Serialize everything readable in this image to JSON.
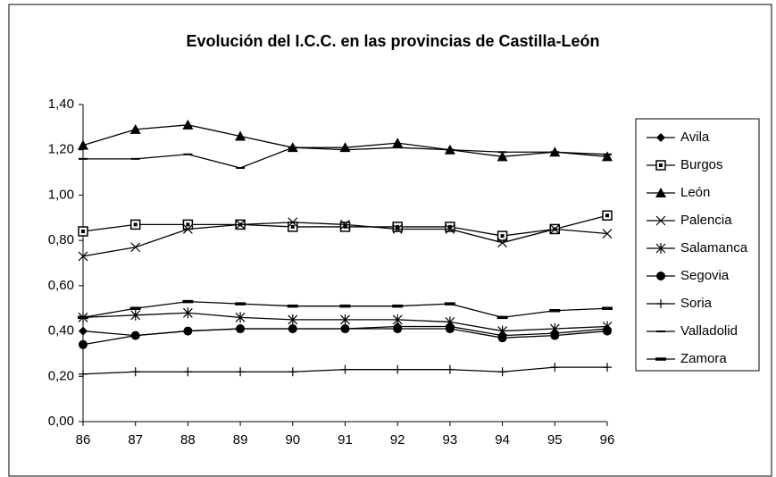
{
  "chart_data": {
    "type": "line",
    "title": "Evolución del I.C.C. en las provincias de Castilla-León",
    "categories": [
      "86",
      "87",
      "88",
      "89",
      "90",
      "91",
      "92",
      "93",
      "94",
      "95",
      "96"
    ],
    "ylim": [
      0,
      1.4
    ],
    "yticks": [
      {
        "value": 0,
        "label": "0,00"
      },
      {
        "value": 0.2,
        "label": "0,20"
      },
      {
        "value": 0.4,
        "label": "0,40"
      },
      {
        "value": 0.6,
        "label": "0,60"
      },
      {
        "value": 0.8,
        "label": "0,80"
      },
      {
        "value": 1.0,
        "label": "1,00"
      },
      {
        "value": 1.2,
        "label": "1,20"
      },
      {
        "value": 1.4,
        "label": "1,40"
      }
    ],
    "grid": false,
    "legend": "right",
    "series": [
      {
        "name": "Avila",
        "color": "#000000",
        "marker": "diamond",
        "values": [
          0.4,
          0.38,
          0.4,
          0.41,
          0.41,
          0.41,
          0.42,
          0.42,
          0.38,
          0.39,
          0.41
        ]
      },
      {
        "name": "Burgos",
        "color": "#000000",
        "marker": "square",
        "values": [
          0.84,
          0.87,
          0.87,
          0.87,
          0.86,
          0.86,
          0.86,
          0.86,
          0.82,
          0.85,
          0.91
        ]
      },
      {
        "name": "León",
        "color": "#000000",
        "marker": "triangle",
        "values": [
          1.22,
          1.29,
          1.31,
          1.26,
          1.21,
          1.21,
          1.23,
          1.2,
          1.17,
          1.19,
          1.17
        ]
      },
      {
        "name": "Palencia",
        "color": "#000000",
        "marker": "x",
        "values": [
          0.73,
          0.77,
          0.85,
          0.87,
          0.88,
          0.87,
          0.85,
          0.85,
          0.79,
          0.85,
          0.83
        ]
      },
      {
        "name": "Salamanca",
        "color": "#000000",
        "marker": "star",
        "values": [
          0.46,
          0.47,
          0.48,
          0.46,
          0.45,
          0.45,
          0.45,
          0.44,
          0.4,
          0.41,
          0.42
        ]
      },
      {
        "name": "Segovia",
        "color": "#000000",
        "marker": "circle",
        "values": [
          0.34,
          0.38,
          0.4,
          0.41,
          0.41,
          0.41,
          0.41,
          0.41,
          0.37,
          0.38,
          0.4
        ]
      },
      {
        "name": "Soria",
        "color": "#000000",
        "marker": "plus",
        "values": [
          0.21,
          0.22,
          0.22,
          0.22,
          0.22,
          0.23,
          0.23,
          0.23,
          0.22,
          0.24,
          0.24
        ]
      },
      {
        "name": "Valladolid",
        "color": "#000000",
        "marker": "dash",
        "values": [
          1.16,
          1.16,
          1.18,
          1.12,
          1.21,
          1.2,
          1.21,
          1.2,
          1.19,
          1.19,
          1.18
        ]
      },
      {
        "name": "Zamora",
        "color": "#000000",
        "marker": "thickdash",
        "values": [
          0.46,
          0.5,
          0.53,
          0.52,
          0.51,
          0.51,
          0.51,
          0.52,
          0.46,
          0.49,
          0.5
        ]
      }
    ]
  }
}
